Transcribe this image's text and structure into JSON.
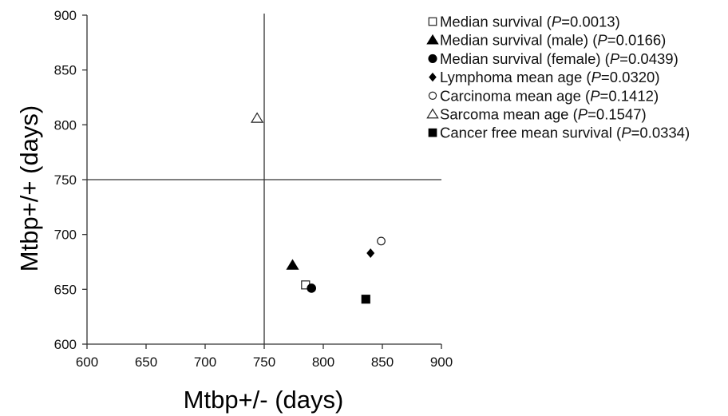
{
  "chart_data": {
    "type": "scatter",
    "xlabel": "Mtbp+/- (days)",
    "ylabel": "Mtbp+/+ (days)",
    "xlim": [
      600,
      900
    ],
    "ylim": [
      600,
      900
    ],
    "xticks": [
      600,
      650,
      700,
      750,
      800,
      850,
      900
    ],
    "yticks": [
      600,
      650,
      700,
      750,
      800,
      850,
      900
    ],
    "reference_lines": {
      "x": 750,
      "y": 750
    },
    "grid": false,
    "legend_position": "top-right",
    "series": [
      {
        "name": "Median survival",
        "p_value": "0.0013",
        "marker": "open-square",
        "x": 785,
        "y": 654
      },
      {
        "name": "Median survival (male)",
        "p_value": "0.0166",
        "marker": "filled-triangle",
        "x": 774,
        "y": 672
      },
      {
        "name": "Median survival (female)",
        "p_value": "0.0439",
        "marker": "filled-circle",
        "x": 790,
        "y": 651
      },
      {
        "name": "Lymphoma mean age",
        "p_value": "0.0320",
        "marker": "filled-diamond",
        "x": 840,
        "y": 683
      },
      {
        "name": "Carcinoma mean age",
        "p_value": "0.1412",
        "marker": "open-circle",
        "x": 849,
        "y": 694
      },
      {
        "name": "Sarcoma mean age",
        "p_value": "0.1547",
        "marker": "open-triangle",
        "x": 744,
        "y": 806
      },
      {
        "name": "Cancer free mean survival",
        "p_value": "0.0334",
        "marker": "filled-square",
        "x": 836,
        "y": 641
      }
    ]
  }
}
